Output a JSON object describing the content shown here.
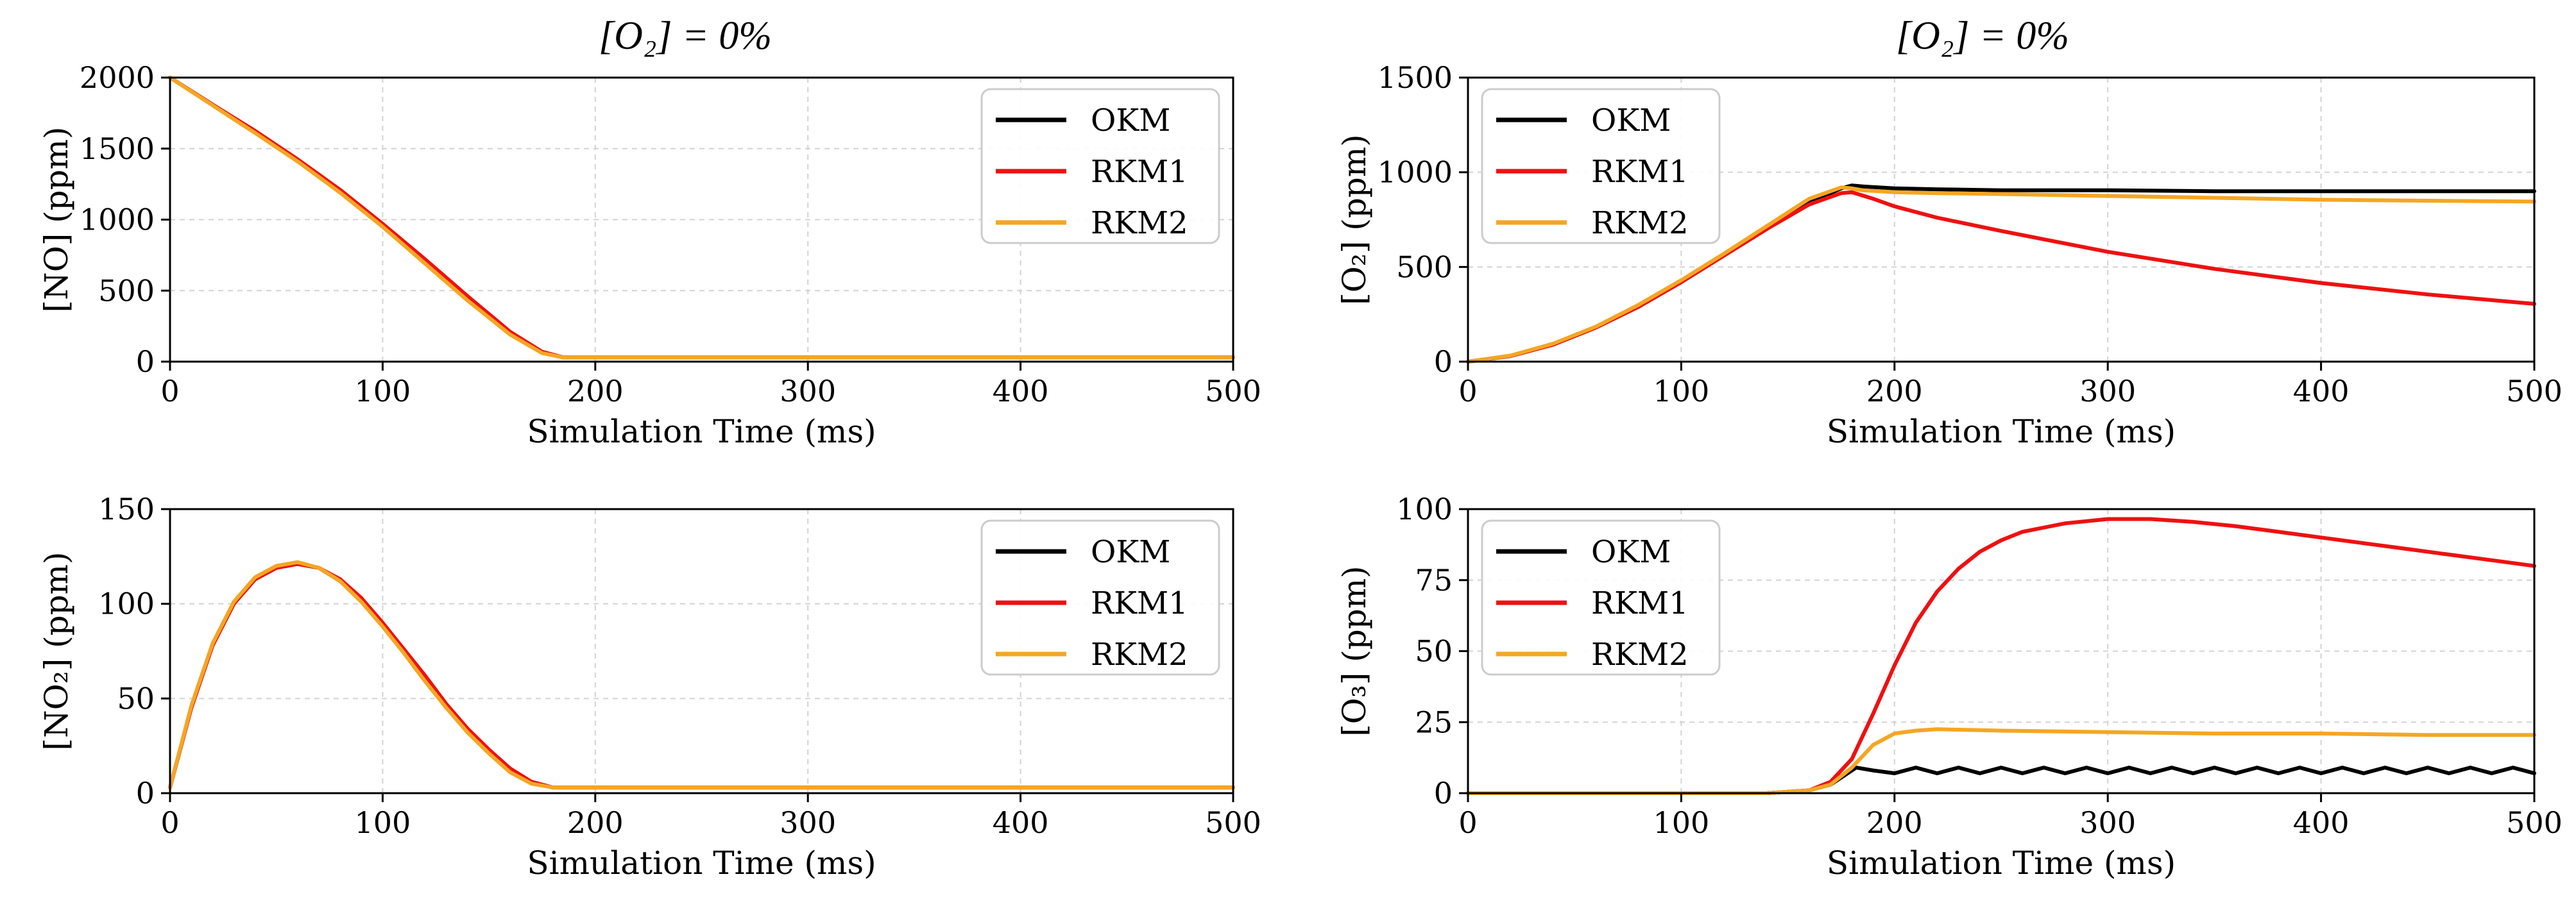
{
  "column_titles": [
    "[O₂] = 0%",
    "[O₂] = 0%"
  ],
  "colors": {
    "OKM": "#000000",
    "RKM1": "#ee1111",
    "RKM2": "#f5a623"
  },
  "chart_data": [
    {
      "type": "line",
      "xlabel": "Simulation Time (ms)",
      "ylabel": "[NO] (ppm)",
      "xlim": [
        0,
        500
      ],
      "ylim": [
        0,
        2000
      ],
      "xticks": [
        0,
        100,
        200,
        300,
        400,
        500
      ],
      "yticks": [
        0,
        500,
        1000,
        1500,
        2000
      ],
      "grid": true,
      "legend": "top-right",
      "series": [
        {
          "name": "OKM",
          "x": [
            0,
            20,
            40,
            60,
            80,
            100,
            120,
            140,
            160,
            175,
            185,
            200,
            300,
            400,
            500
          ],
          "y": [
            2000,
            1810,
            1620,
            1420,
            1200,
            960,
            700,
            440,
            200,
            65,
            30,
            30,
            30,
            30,
            30
          ]
        },
        {
          "name": "RKM1",
          "x": [
            0,
            20,
            40,
            60,
            80,
            100,
            120,
            140,
            160,
            175,
            185,
            200,
            300,
            400,
            500
          ],
          "y": [
            2000,
            1810,
            1625,
            1425,
            1210,
            970,
            720,
            460,
            210,
            70,
            30,
            30,
            30,
            30,
            30
          ]
        },
        {
          "name": "RKM2",
          "x": [
            0,
            20,
            40,
            60,
            80,
            100,
            120,
            140,
            160,
            175,
            185,
            200,
            300,
            400,
            500
          ],
          "y": [
            2000,
            1805,
            1610,
            1410,
            1190,
            950,
            690,
            430,
            190,
            60,
            30,
            30,
            30,
            30,
            30
          ]
        }
      ]
    },
    {
      "type": "line",
      "xlabel": "Simulation Time (ms)",
      "ylabel": "[O₂] (ppm)",
      "xlim": [
        0,
        500
      ],
      "ylim": [
        0,
        1500
      ],
      "xticks": [
        0,
        100,
        200,
        300,
        400,
        500
      ],
      "yticks": [
        0,
        500,
        1000,
        1500
      ],
      "grid": true,
      "legend": "top-left",
      "series": [
        {
          "name": "OKM",
          "x": [
            0,
            20,
            40,
            60,
            80,
            100,
            120,
            140,
            160,
            175,
            180,
            185,
            200,
            220,
            250,
            300,
            350,
            400,
            450,
            500
          ],
          "y": [
            0,
            30,
            90,
            180,
            290,
            420,
            560,
            700,
            840,
            915,
            930,
            925,
            915,
            910,
            905,
            905,
            900,
            900,
            900,
            900
          ]
        },
        {
          "name": "RKM1",
          "x": [
            0,
            20,
            40,
            60,
            80,
            100,
            120,
            140,
            160,
            175,
            180,
            190,
            200,
            220,
            250,
            300,
            350,
            400,
            450,
            500
          ],
          "y": [
            0,
            30,
            90,
            180,
            290,
            420,
            560,
            700,
            830,
            890,
            895,
            860,
            820,
            760,
            690,
            580,
            490,
            415,
            355,
            305
          ]
        },
        {
          "name": "RKM2",
          "x": [
            0,
            20,
            40,
            60,
            80,
            100,
            120,
            140,
            160,
            175,
            180,
            185,
            200,
            220,
            250,
            300,
            350,
            400,
            450,
            500
          ],
          "y": [
            0,
            32,
            95,
            185,
            300,
            430,
            570,
            715,
            860,
            920,
            915,
            905,
            895,
            890,
            885,
            875,
            865,
            855,
            850,
            845
          ]
        }
      ]
    },
    {
      "type": "line",
      "xlabel": "Simulation Time (ms)",
      "ylabel": "[NO₂] (ppm)",
      "xlim": [
        0,
        500
      ],
      "ylim": [
        0,
        150
      ],
      "xticks": [
        0,
        100,
        200,
        300,
        400,
        500
      ],
      "yticks": [
        0,
        50,
        100,
        150
      ],
      "grid": true,
      "legend": "top-right",
      "series": [
        {
          "name": "OKM",
          "x": [
            0,
            10,
            20,
            30,
            40,
            50,
            60,
            70,
            80,
            90,
            100,
            110,
            120,
            130,
            140,
            150,
            160,
            170,
            180,
            200,
            300,
            400,
            500
          ],
          "y": [
            3,
            45,
            78,
            100,
            113,
            119,
            121,
            119,
            112,
            102,
            89,
            75,
            60,
            46,
            33,
            22,
            12,
            6,
            3,
            3,
            3,
            3,
            3
          ]
        },
        {
          "name": "RKM1",
          "x": [
            0,
            10,
            20,
            30,
            40,
            50,
            60,
            70,
            80,
            90,
            100,
            110,
            120,
            130,
            140,
            150,
            160,
            170,
            180,
            200,
            300,
            400,
            500
          ],
          "y": [
            3,
            45,
            78,
            100,
            113,
            119,
            121,
            119,
            113,
            103,
            90,
            76,
            62,
            47,
            34,
            23,
            13,
            6,
            3,
            3,
            3,
            3,
            3
          ]
        },
        {
          "name": "RKM2",
          "x": [
            0,
            10,
            20,
            30,
            40,
            50,
            60,
            70,
            80,
            90,
            100,
            110,
            120,
            130,
            140,
            150,
            160,
            170,
            180,
            200,
            300,
            400,
            500
          ],
          "y": [
            3,
            46,
            79,
            101,
            114,
            120,
            122,
            119,
            112,
            101,
            88,
            74,
            59,
            45,
            32,
            21,
            11,
            5,
            3,
            3,
            3,
            3,
            3
          ]
        }
      ]
    },
    {
      "type": "line",
      "xlabel": "Simulation Time (ms)",
      "ylabel": "[O₃] (ppm)",
      "xlim": [
        0,
        500
      ],
      "ylim": [
        0,
        100
      ],
      "xticks": [
        0,
        100,
        200,
        300,
        400,
        500
      ],
      "yticks": [
        0,
        25,
        50,
        75,
        100
      ],
      "grid": true,
      "legend": "top-left",
      "series": [
        {
          "name": "OKM",
          "x": [
            0,
            140,
            160,
            170,
            178,
            182,
            190,
            200,
            210,
            220,
            230,
            240,
            250,
            260,
            270,
            280,
            290,
            300,
            310,
            320,
            330,
            340,
            350,
            360,
            370,
            380,
            390,
            400,
            410,
            420,
            430,
            440,
            450,
            460,
            470,
            480,
            490,
            500
          ],
          "y": [
            0,
            0,
            1,
            3,
            7,
            9,
            8,
            7,
            9,
            7,
            9,
            7,
            9,
            7,
            9,
            7,
            9,
            7,
            9,
            7,
            9,
            7,
            9,
            7,
            9,
            7,
            9,
            7,
            9,
            7,
            9,
            7,
            9,
            7,
            9,
            7,
            9,
            7
          ]
        },
        {
          "name": "RKM1",
          "x": [
            0,
            140,
            160,
            170,
            180,
            190,
            200,
            210,
            220,
            230,
            240,
            250,
            260,
            280,
            300,
            320,
            340,
            360,
            380,
            400,
            420,
            440,
            460,
            480,
            500
          ],
          "y": [
            0,
            0,
            1,
            4,
            12,
            28,
            45,
            60,
            71,
            79,
            85,
            89,
            92,
            95,
            96.5,
            96.5,
            95.5,
            94,
            92,
            90,
            88,
            86,
            84,
            82,
            80
          ]
        },
        {
          "name": "RKM2",
          "x": [
            0,
            140,
            160,
            170,
            180,
            190,
            200,
            210,
            220,
            250,
            300,
            350,
            400,
            450,
            500
          ],
          "y": [
            0,
            0,
            1,
            3,
            9,
            17,
            21,
            22,
            22.5,
            22,
            21.5,
            21,
            21,
            20.5,
            20.5
          ]
        }
      ]
    }
  ]
}
